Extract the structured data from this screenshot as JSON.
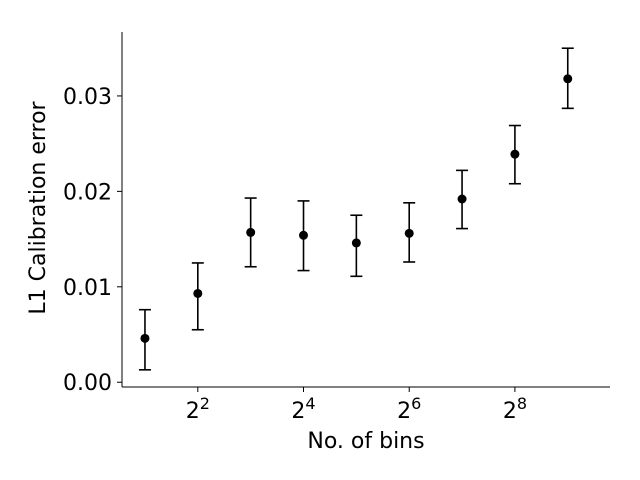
{
  "chart_data": {
    "type": "scatter",
    "title": "",
    "xlabel": "No. of bins",
    "ylabel": "L1 Calibration error",
    "xscale": "log2",
    "x": [
      2,
      4,
      8,
      16,
      32,
      64,
      128,
      256,
      512
    ],
    "y": [
      0.0046,
      0.0093,
      0.0157,
      0.0154,
      0.0146,
      0.0156,
      0.0192,
      0.0239,
      0.0318
    ],
    "yerr_low": [
      0.0013,
      0.0055,
      0.0121,
      0.0117,
      0.0111,
      0.0126,
      0.0161,
      0.0208,
      0.0287
    ],
    "yerr_high": [
      0.0076,
      0.0125,
      0.0193,
      0.019,
      0.0175,
      0.0188,
      0.0222,
      0.0269,
      0.035
    ],
    "xlim": [
      1.48,
      891
    ],
    "ylim": [
      -0.0005,
      0.0367
    ],
    "xticks": [
      4,
      16,
      64,
      256
    ],
    "xtick_labels": [
      {
        "base": "2",
        "exp": "2"
      },
      {
        "base": "2",
        "exp": "4"
      },
      {
        "base": "2",
        "exp": "6"
      },
      {
        "base": "2",
        "exp": "8"
      }
    ],
    "yticks": [
      0.0,
      0.01,
      0.02,
      0.03
    ],
    "ytick_labels": [
      "0.00",
      "0.01",
      "0.02",
      "0.03"
    ],
    "marker_color": "#000000",
    "grid": false,
    "spines": "left-bottom"
  }
}
